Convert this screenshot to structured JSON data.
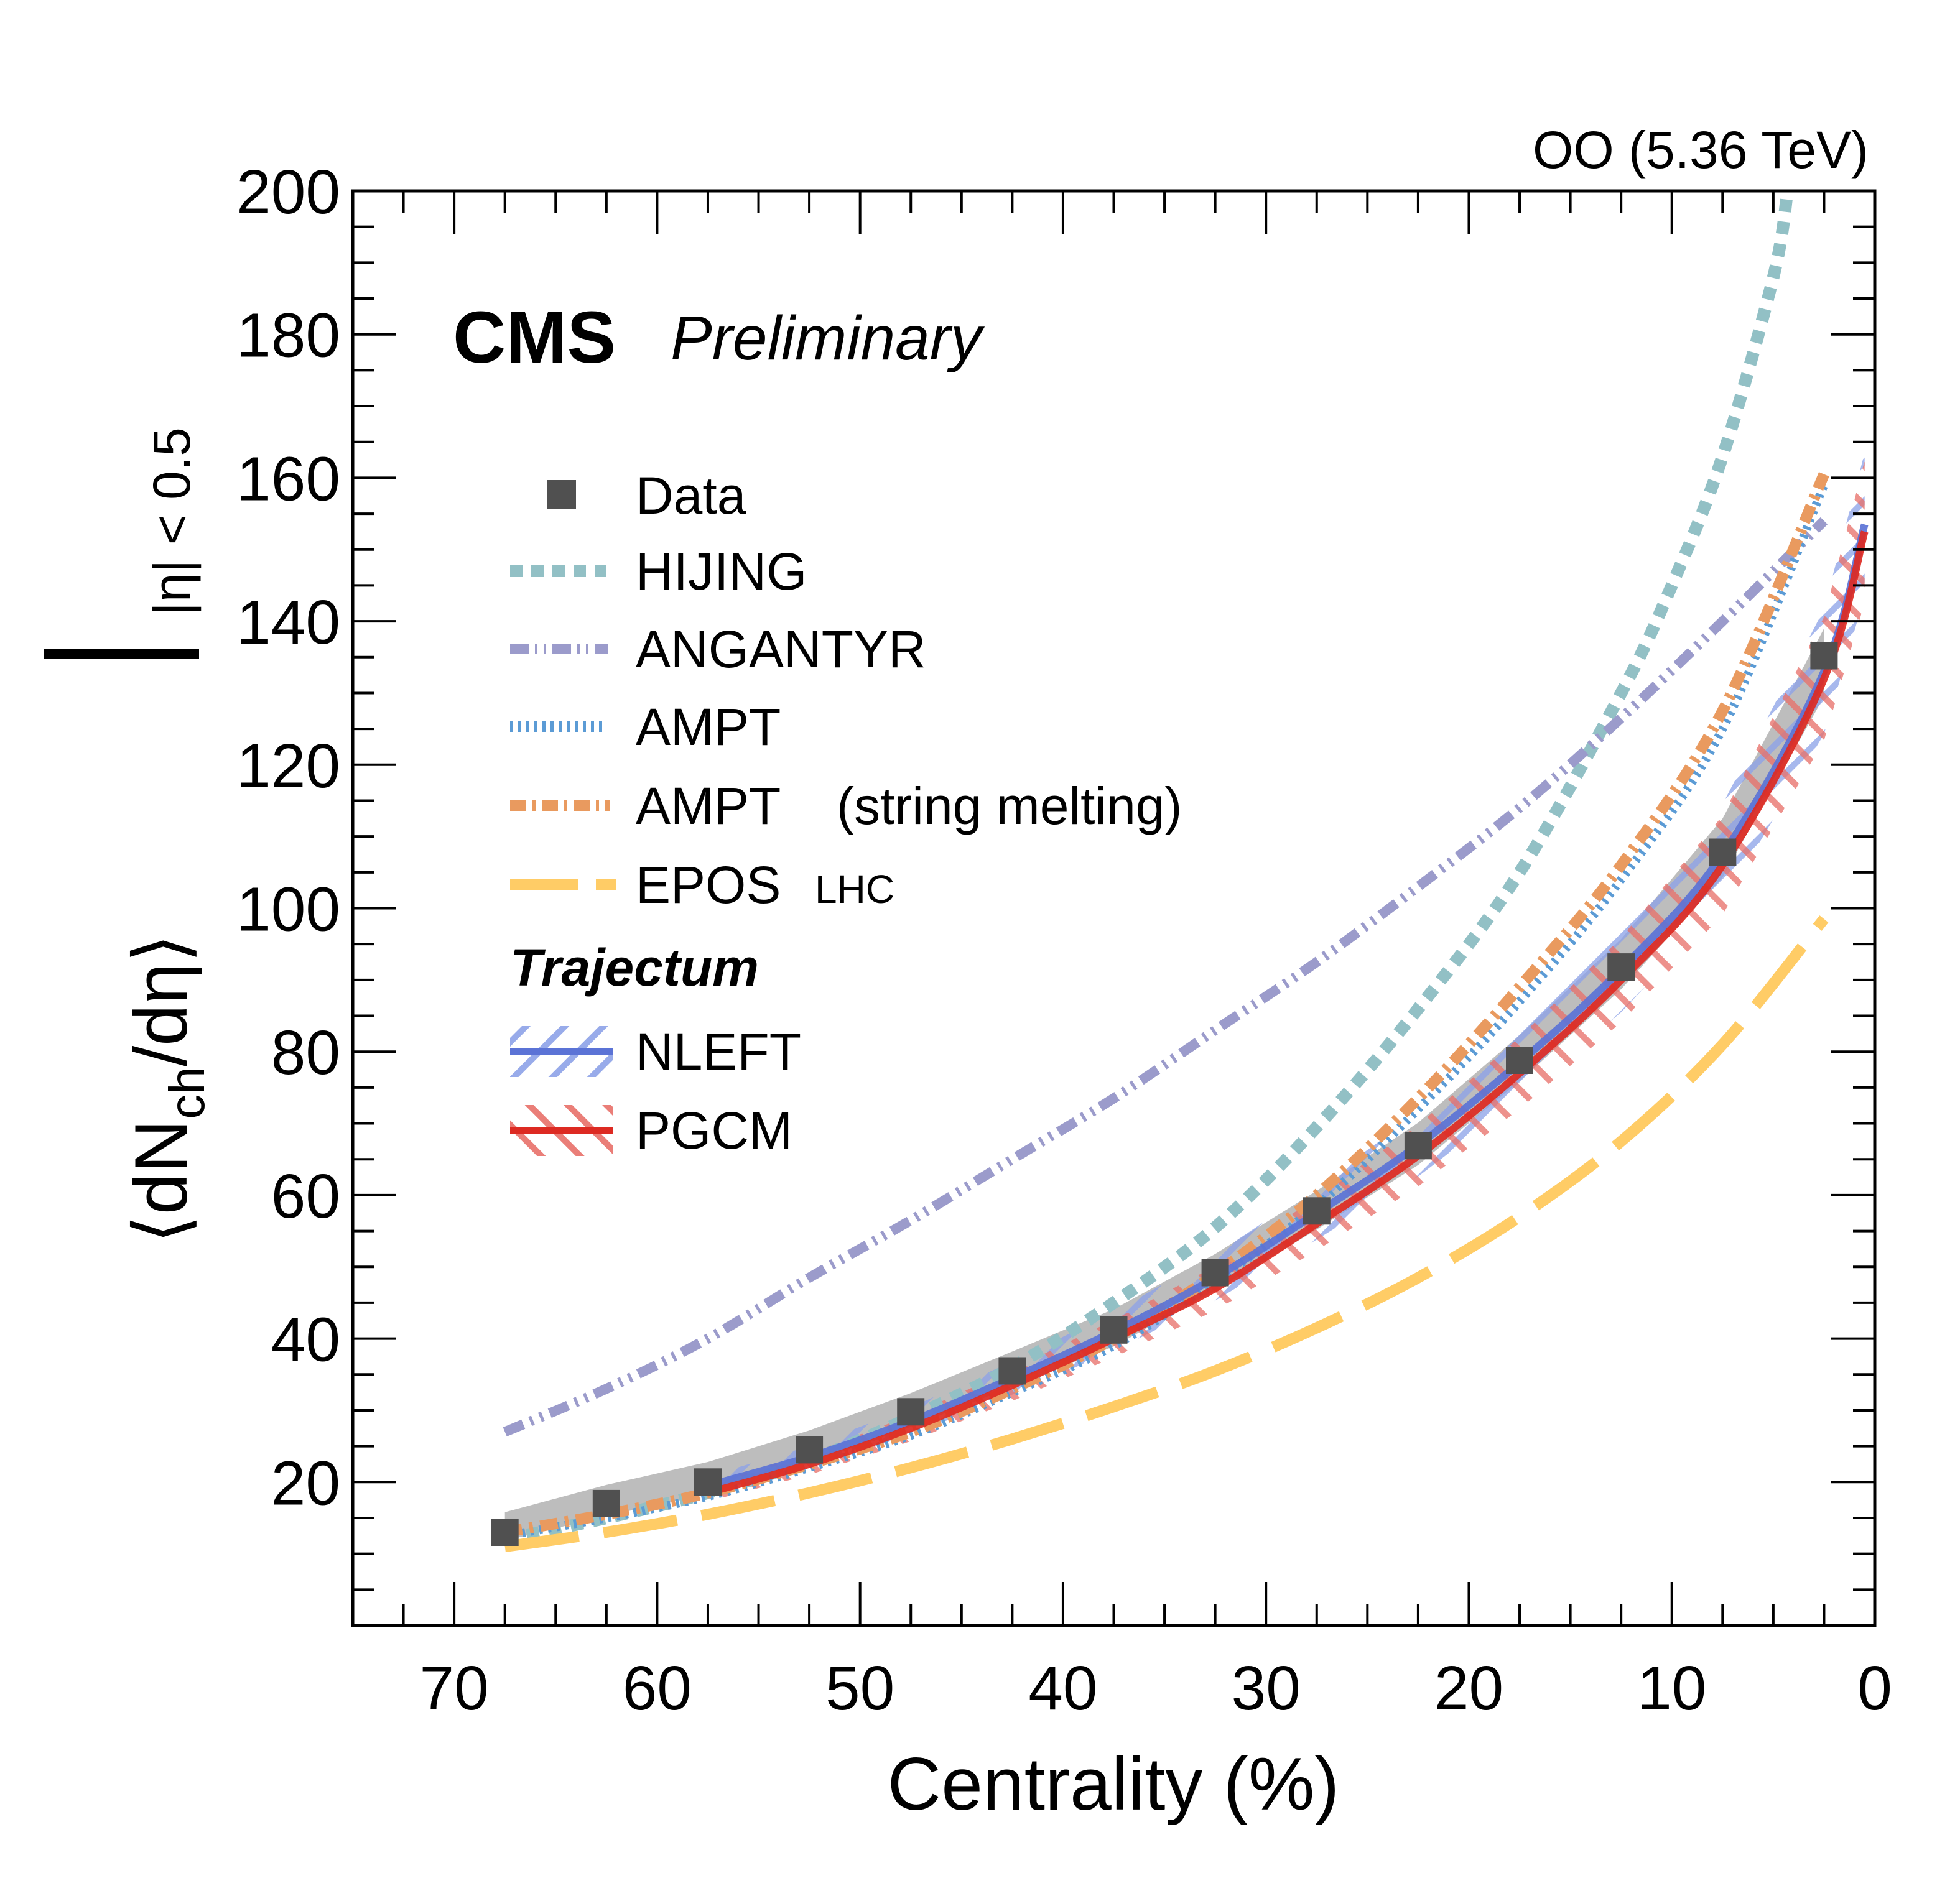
{
  "chart_data": {
    "type": "line",
    "title": "",
    "energy_label": "OO (5.36 TeV)",
    "experiment_label": "CMS",
    "status_label": "Preliminary",
    "xlabel": "Centrality (%)",
    "ylabel_main": "⟨dN",
    "ylabel_sub": "ch",
    "ylabel_rest": "/dη⟩",
    "ylabel_condition": "|η| < 0.5",
    "xlim": [
      75,
      0
    ],
    "ylim": [
      0,
      200
    ],
    "x_reversed": true,
    "x_ticks": [
      70,
      60,
      50,
      40,
      30,
      20,
      10,
      0
    ],
    "x_tick_labels": [
      "70",
      "60",
      "50",
      "40",
      "30",
      "20",
      "10",
      "0"
    ],
    "y_ticks": [
      20,
      40,
      60,
      80,
      100,
      120,
      140,
      160,
      180,
      200
    ],
    "y_tick_labels": [
      "20",
      "40",
      "60",
      "80",
      "100",
      "120",
      "140",
      "160",
      "180",
      "200"
    ],
    "grid": false,
    "legend_position": "top-left",
    "data": {
      "name": "Data",
      "color": "#505050",
      "band_color": "#bdbdbd",
      "x": [
        67.5,
        62.5,
        57.5,
        52.5,
        47.5,
        42.5,
        37.5,
        32.5,
        27.5,
        22.5,
        17.5,
        12.5,
        7.5,
        2.5
      ],
      "y": [
        13.0,
        17.0,
        20.0,
        24.5,
        29.8,
        35.5,
        41.2,
        49.2,
        57.8,
        66.9,
        78.8,
        91.8,
        107.8,
        135.2
      ],
      "band_low": [
        11.8,
        15.3,
        18.3,
        22.6,
        27.7,
        33.3,
        38.9,
        46.7,
        55.2,
        64.2,
        75.9,
        88.7,
        104.3,
        129.5
      ],
      "band_high": [
        15.8,
        19.6,
        22.8,
        27.2,
        32.4,
        38.2,
        44.1,
        51.8,
        60.6,
        70.1,
        82.3,
        95.7,
        112.5,
        139.0
      ]
    },
    "series": [
      {
        "name": "HIJING",
        "legend_label": "HIJING",
        "style": "dotted-thick",
        "color": "#92c0c5",
        "x": [
          67.5,
          62.5,
          57.5,
          52.5,
          47.5,
          42.5,
          37.5,
          32.5,
          27.5,
          22.5,
          17.5,
          12.5,
          10,
          7.5,
          5,
          4.3
        ],
        "y": [
          12,
          15,
          18.5,
          23,
          29,
          36,
          45,
          55.5,
          69.5,
          86,
          105,
          130,
          145,
          163,
          188,
          200
        ]
      },
      {
        "name": "ANGANTYR",
        "legend_label": "ANGANTYR",
        "style": "dash-dot-dot",
        "color": "#9b9bcb",
        "x": [
          67.5,
          62.5,
          57.5,
          52.5,
          47.5,
          42.5,
          37.5,
          32.5,
          27.5,
          22.5,
          17.5,
          12.5,
          7.5,
          2.5
        ],
        "y": [
          27,
          33,
          40,
          48.5,
          56.5,
          65,
          73.5,
          83,
          92.5,
          103,
          114,
          126.5,
          140,
          154
        ]
      },
      {
        "name": "AMPT",
        "legend_label": "AMPT",
        "style": "fine-dotted",
        "color": "#5b9bd5",
        "x": [
          67.5,
          62.5,
          57.5,
          52.5,
          47.5,
          42.5,
          37.5,
          32.5,
          27.5,
          22.5,
          17.5,
          12.5,
          7.5,
          2.5
        ],
        "y": [
          12.5,
          15,
          18,
          22,
          26.5,
          32.5,
          39,
          48,
          58.5,
          72,
          87,
          104,
          125,
          159
        ]
      },
      {
        "name": "AMPT (string melting)",
        "legend_label": "AMPT",
        "legend_suffix": "(string melting)",
        "style": "dash-dot",
        "color": "#e99a5f",
        "x": [
          67.5,
          62.5,
          57.5,
          52.5,
          47.5,
          42.5,
          37.5,
          32.5,
          27.5,
          22.5,
          17.5,
          12.5,
          7.5,
          2.5
        ],
        "y": [
          13,
          15.5,
          18.5,
          22.5,
          27,
          33,
          40,
          49,
          60,
          73.5,
          89,
          106,
          127.5,
          160.5
        ]
      },
      {
        "name": "EPOS LHC",
        "legend_label": "EPOS",
        "legend_suffix": "LHC",
        "style": "long-dash",
        "color": "#ffcc66",
        "x": [
          67.5,
          62.5,
          57.5,
          52.5,
          47.5,
          42.5,
          37.5,
          32.5,
          27.5,
          22.5,
          17.5,
          12.5,
          7.5,
          2.5
        ],
        "y": [
          11,
          13,
          15.5,
          18.5,
          22,
          26,
          30.5,
          35.5,
          41.5,
          48.5,
          57,
          67.5,
          81,
          98.5
        ]
      }
    ],
    "trajectum_header": "Trajectum",
    "trajectum_series": [
      {
        "name": "NLEFT",
        "legend_label": "NLEFT",
        "style": "solid-hatched",
        "color": "#5b73d6",
        "hatch_color": "#8da2e8",
        "x": [
          57.5,
          52.5,
          47.5,
          42.5,
          37.5,
          32.5,
          27.5,
          22.5,
          17.5,
          12.5,
          7.5,
          2.5,
          0.5
        ],
        "y": [
          19.5,
          23.5,
          28.5,
          34.5,
          41,
          48.5,
          57.5,
          67,
          78.5,
          91.5,
          107.5,
          133,
          153.5
        ],
        "band_low": [
          18.2,
          22,
          26.6,
          32.2,
          38.3,
          45.3,
          53.8,
          62.6,
          73.4,
          85.5,
          100.5,
          124.3,
          143.5
        ],
        "band_high": [
          20.8,
          25,
          30.4,
          36.8,
          43.7,
          51.7,
          61.2,
          71.4,
          83.6,
          97.5,
          114.5,
          141.7,
          163.5
        ]
      },
      {
        "name": "PGCM",
        "legend_label": "PGCM",
        "style": "solid-hatched",
        "color": "#dd2a22",
        "hatch_color": "#e8706a",
        "x": [
          57.5,
          52.5,
          47.5,
          42.5,
          37.5,
          32.5,
          27.5,
          22.5,
          17.5,
          12.5,
          7.5,
          2.5,
          0.5
        ],
        "y": [
          18.5,
          22.5,
          27.5,
          33.5,
          40,
          47,
          56,
          65.5,
          77,
          90,
          106,
          132,
          152.5
        ],
        "band_low": [
          17.3,
          21,
          25.7,
          31.3,
          37.4,
          43.9,
          52.3,
          61.2,
          72,
          84.1,
          99.1,
          123.4,
          142.6
        ],
        "band_high": [
          19.7,
          24,
          29.3,
          35.7,
          42.6,
          50.1,
          59.7,
          69.8,
          82,
          95.9,
          112.9,
          140.6,
          162.4
        ]
      }
    ]
  }
}
